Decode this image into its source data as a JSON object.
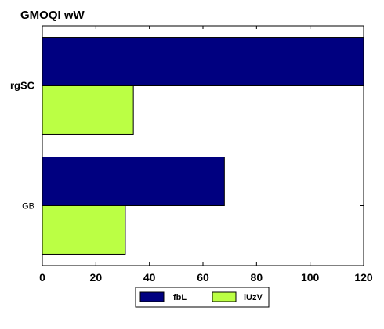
{
  "chart_data": {
    "type": "bar",
    "orientation": "horizontal",
    "title": "GMOQI wW",
    "xlabel": "",
    "ylabel": "",
    "xlim": [
      0,
      120
    ],
    "xticks": [
      0,
      20,
      40,
      60,
      80,
      100,
      120
    ],
    "grid": false,
    "legend_position": "bottom",
    "categories": [
      "rgSC",
      "GB"
    ],
    "category_bold": [
      true,
      false
    ],
    "series": [
      {
        "name": "fbL",
        "color": "#000080",
        "values": [
          120,
          68
        ]
      },
      {
        "name": "lUzV",
        "color": "#bbff44",
        "values": [
          34,
          31
        ]
      }
    ]
  }
}
